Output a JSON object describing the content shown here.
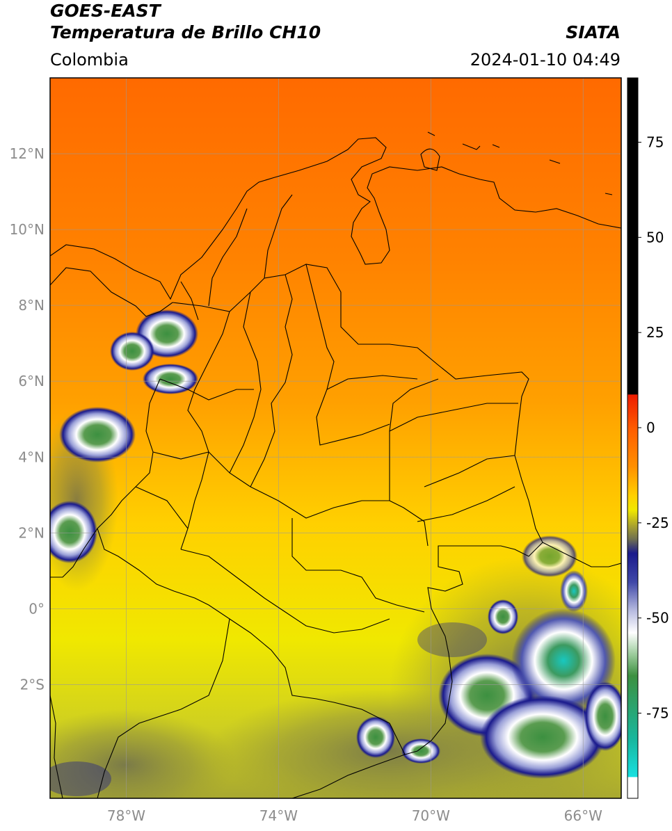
{
  "header": {
    "satellite": "GOES-EAST",
    "product": "Temperatura de Brillo CH10",
    "region": "Colombia",
    "agency": "SIATA",
    "datetime": "2024-01-10 04:49"
  },
  "map": {
    "lon_range": [
      -80,
      -65
    ],
    "lat_range": [
      -5,
      14
    ],
    "lat_ticks": [
      {
        "value": 12,
        "label": "12°N"
      },
      {
        "value": 10,
        "label": "10°N"
      },
      {
        "value": 8,
        "label": "8°N"
      },
      {
        "value": 6,
        "label": "6°N"
      },
      {
        "value": 4,
        "label": "4°N"
      },
      {
        "value": 2,
        "label": "2°N"
      },
      {
        "value": 0,
        "label": "0°"
      },
      {
        "value": -2,
        "label": "2°S"
      }
    ],
    "lon_ticks": [
      {
        "value": -78,
        "label": "78°W"
      },
      {
        "value": -74,
        "label": "74°W"
      },
      {
        "value": -70,
        "label": "70°W"
      },
      {
        "value": -66,
        "label": "66°W"
      }
    ],
    "grid": true
  },
  "colorbar": {
    "ticks": [
      {
        "value": 75,
        "label": "75"
      },
      {
        "value": 50,
        "label": "50"
      },
      {
        "value": 25,
        "label": "25"
      },
      {
        "value": 0,
        "label": "0"
      },
      {
        "value": -25,
        "label": "-25"
      },
      {
        "value": -50,
        "label": "-50"
      },
      {
        "value": -75,
        "label": "-75"
      }
    ],
    "colors": {
      "warm_top": "#000000",
      "red": "#ee1c00",
      "orange": "#ff8000",
      "yellow": "#ffe600",
      "olive": "#9c9a2e",
      "navy": "#1a1a8c",
      "white": "#ffffff",
      "green": "#3c9040",
      "cyan": "#18d8d8"
    }
  }
}
